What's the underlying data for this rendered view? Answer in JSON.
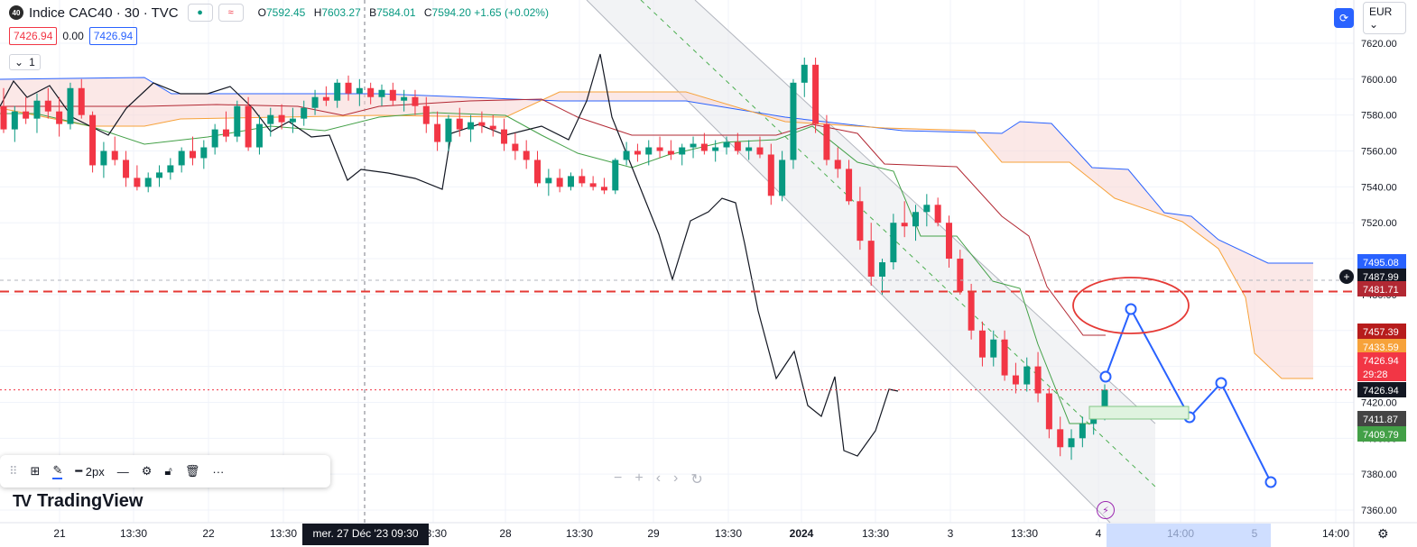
{
  "header": {
    "badge": "40",
    "title": "Indice CAC40 · 30 · TVC",
    "mode_icon": "≈",
    "ohlc": [
      {
        "k": "O",
        "v": "7592.45"
      },
      {
        "k": "H",
        "v": "7603.27"
      },
      {
        "k": "B",
        "v": "7584.01"
      },
      {
        "k": "C",
        "v": "7594.20 +1.65 (+0.02%)"
      }
    ],
    "bid": "7426.94",
    "spread": "0.00",
    "ask": "7426.94",
    "interval": "1"
  },
  "top_right": {
    "currency": "EUR"
  },
  "toolbar": {
    "width_label": "2px"
  },
  "logo": {
    "text": "TradingView"
  },
  "chart_data": {
    "type": "candlestick",
    "y_ticks": [
      "7620.00",
      "7600.00",
      "7580.00",
      "7560.00",
      "7540.00",
      "7520.00",
      "7500.00",
      "7480.00",
      "7460.00",
      "7440.00",
      "7420.00",
      "7400.00",
      "7380.00",
      "7360.00"
    ],
    "x_ticks": [
      "21",
      "13:30",
      "22",
      "13:30",
      "27",
      "13:30",
      "28",
      "13:30",
      "29",
      "13:30",
      "2024",
      "13:30",
      "3",
      "13:30",
      "4",
      "14:00",
      "5",
      "14:00"
    ],
    "ylim": [
      7357,
      7627
    ],
    "crosshair_label": "mer. 27 Déc '23   09:30",
    "price_labels": [
      {
        "text": "7495.08",
        "color": "#2962ff"
      },
      {
        "text": "7487.99",
        "color": "#131722"
      },
      {
        "text": "7481.71",
        "color": "#b22833"
      },
      {
        "text": "7457.39",
        "color": "#b71c1c"
      },
      {
        "text": "7433.59",
        "color": "#f7a23a"
      },
      {
        "text": "7426.94",
        "color": "#f23645"
      },
      {
        "text": "29:28",
        "color": "#f23645"
      },
      {
        "text": "7426.94",
        "color": "#131722"
      },
      {
        "text": "7411.87",
        "color": "#444444"
      },
      {
        "text": "7409.79",
        "color": "#43a047"
      }
    ],
    "candles": [
      [
        7585,
        7595,
        7570,
        7572
      ],
      [
        7572,
        7585,
        7565,
        7582
      ],
      [
        7582,
        7590,
        7575,
        7578
      ],
      [
        7578,
        7592,
        7570,
        7588
      ],
      [
        7588,
        7595,
        7578,
        7582
      ],
      [
        7582,
        7590,
        7568,
        7575
      ],
      [
        7575,
        7598,
        7572,
        7595
      ],
      [
        7595,
        7600,
        7578,
        7580
      ],
      [
        7580,
        7582,
        7548,
        7552
      ],
      [
        7552,
        7565,
        7545,
        7560
      ],
      [
        7560,
        7568,
        7552,
        7555
      ],
      [
        7555,
        7560,
        7540,
        7545
      ],
      [
        7545,
        7552,
        7538,
        7540
      ],
      [
        7540,
        7548,
        7537,
        7545
      ],
      [
        7545,
        7552,
        7540,
        7548
      ],
      [
        7548,
        7556,
        7544,
        7552
      ],
      [
        7552,
        7562,
        7548,
        7560
      ],
      [
        7560,
        7568,
        7552,
        7556
      ],
      [
        7556,
        7566,
        7550,
        7562
      ],
      [
        7562,
        7575,
        7558,
        7572
      ],
      [
        7572,
        7582,
        7565,
        7568
      ],
      [
        7568,
        7588,
        7565,
        7585
      ],
      [
        7585,
        7590,
        7560,
        7562
      ],
      [
        7562,
        7580,
        7558,
        7575
      ],
      [
        7575,
        7584,
        7568,
        7580
      ],
      [
        7580,
        7586,
        7572,
        7576
      ],
      [
        7576,
        7584,
        7570,
        7578
      ],
      [
        7578,
        7588,
        7574,
        7584
      ],
      [
        7584,
        7594,
        7580,
        7590
      ],
      [
        7590,
        7596,
        7585,
        7588
      ],
      [
        7588,
        7600,
        7584,
        7598
      ],
      [
        7598,
        7602,
        7588,
        7592
      ],
      [
        7592,
        7600,
        7585,
        7595
      ],
      [
        7595,
        7598,
        7586,
        7590
      ],
      [
        7590,
        7597,
        7585,
        7594
      ],
      [
        7594,
        7598,
        7585,
        7588
      ],
      [
        7588,
        7594,
        7582,
        7590
      ],
      [
        7590,
        7594,
        7580,
        7585
      ],
      [
        7585,
        7590,
        7570,
        7575
      ],
      [
        7575,
        7582,
        7560,
        7565
      ],
      [
        7565,
        7580,
        7560,
        7578
      ],
      [
        7578,
        7584,
        7568,
        7572
      ],
      [
        7572,
        7580,
        7565,
        7576
      ],
      [
        7576,
        7582,
        7570,
        7574
      ],
      [
        7574,
        7580,
        7568,
        7572
      ],
      [
        7572,
        7578,
        7560,
        7564
      ],
      [
        7564,
        7570,
        7555,
        7560
      ],
      [
        7560,
        7566,
        7550,
        7555
      ],
      [
        7555,
        7560,
        7540,
        7542
      ],
      [
        7542,
        7550,
        7535,
        7545
      ],
      [
        7545,
        7550,
        7537,
        7540
      ],
      [
        7540,
        7548,
        7538,
        7546
      ],
      [
        7546,
        7550,
        7540,
        7542
      ],
      [
        7542,
        7546,
        7538,
        7540
      ],
      [
        7540,
        7545,
        7536,
        7538
      ],
      [
        7538,
        7556,
        7536,
        7555
      ],
      [
        7555,
        7565,
        7552,
        7560
      ],
      [
        7560,
        7564,
        7554,
        7558
      ],
      [
        7558,
        7566,
        7552,
        7562
      ],
      [
        7562,
        7568,
        7556,
        7560
      ],
      [
        7560,
        7566,
        7555,
        7558
      ],
      [
        7558,
        7564,
        7552,
        7562
      ],
      [
        7562,
        7568,
        7556,
        7564
      ],
      [
        7564,
        7570,
        7558,
        7560
      ],
      [
        7560,
        7566,
        7554,
        7562
      ],
      [
        7562,
        7568,
        7558,
        7565
      ],
      [
        7565,
        7570,
        7558,
        7560
      ],
      [
        7560,
        7566,
        7555,
        7562
      ],
      [
        7562,
        7568,
        7556,
        7558
      ],
      [
        7558,
        7564,
        7530,
        7535
      ],
      [
        7535,
        7560,
        7532,
        7555
      ],
      [
        7555,
        7600,
        7550,
        7598
      ],
      [
        7598,
        7612,
        7590,
        7608
      ],
      [
        7608,
        7612,
        7570,
        7575
      ],
      [
        7575,
        7580,
        7552,
        7555
      ],
      [
        7555,
        7562,
        7545,
        7550
      ],
      [
        7550,
        7555,
        7530,
        7532
      ],
      [
        7532,
        7540,
        7505,
        7510
      ],
      [
        7510,
        7520,
        7485,
        7490
      ],
      [
        7490,
        7500,
        7480,
        7498
      ],
      [
        7498,
        7525,
        7494,
        7520
      ],
      [
        7520,
        7532,
        7512,
        7518
      ],
      [
        7518,
        7530,
        7510,
        7526
      ],
      [
        7526,
        7536,
        7518,
        7530
      ],
      [
        7530,
        7534,
        7518,
        7520
      ],
      [
        7520,
        7524,
        7495,
        7500
      ],
      [
        7500,
        7505,
        7480,
        7482
      ],
      [
        7482,
        7486,
        7455,
        7460
      ],
      [
        7460,
        7465,
        7440,
        7445
      ],
      [
        7445,
        7460,
        7440,
        7455
      ],
      [
        7455,
        7460,
        7432,
        7435
      ],
      [
        7435,
        7442,
        7425,
        7430
      ],
      [
        7430,
        7445,
        7426,
        7440
      ],
      [
        7440,
        7448,
        7420,
        7425
      ],
      [
        7425,
        7428,
        7400,
        7405
      ],
      [
        7405,
        7412,
        7390,
        7395
      ],
      [
        7395,
        7405,
        7388,
        7400
      ],
      [
        7400,
        7412,
        7395,
        7408
      ],
      [
        7408,
        7415,
        7402,
        7412
      ],
      [
        7412,
        7430,
        7410,
        7427
      ]
    ]
  }
}
